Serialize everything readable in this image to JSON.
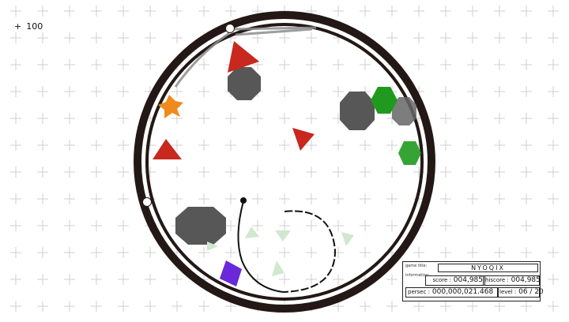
{
  "bonus": {
    "icon": "plus-icon",
    "value": "100"
  },
  "panel": {
    "game_title_label": "game title:",
    "game_title": "NYOQIX",
    "information_label": "information:",
    "score_label": "score :",
    "score": "004,985",
    "hiscore_label": "hiscore :",
    "hiscore": "004,985",
    "persec_label": "persec :",
    "persec": "000,000,021.468",
    "level_label": "level :",
    "level": "06 / 20"
  },
  "colors": {
    "ring": "#231815",
    "red_triangle": "#c8281e",
    "green_hexagon": "#1f9a1f",
    "gray_octagon": "#575757",
    "orange_star": "#f08a1c",
    "purple_square": "#6a28d8",
    "ghost_green": "#cfe8cf"
  }
}
